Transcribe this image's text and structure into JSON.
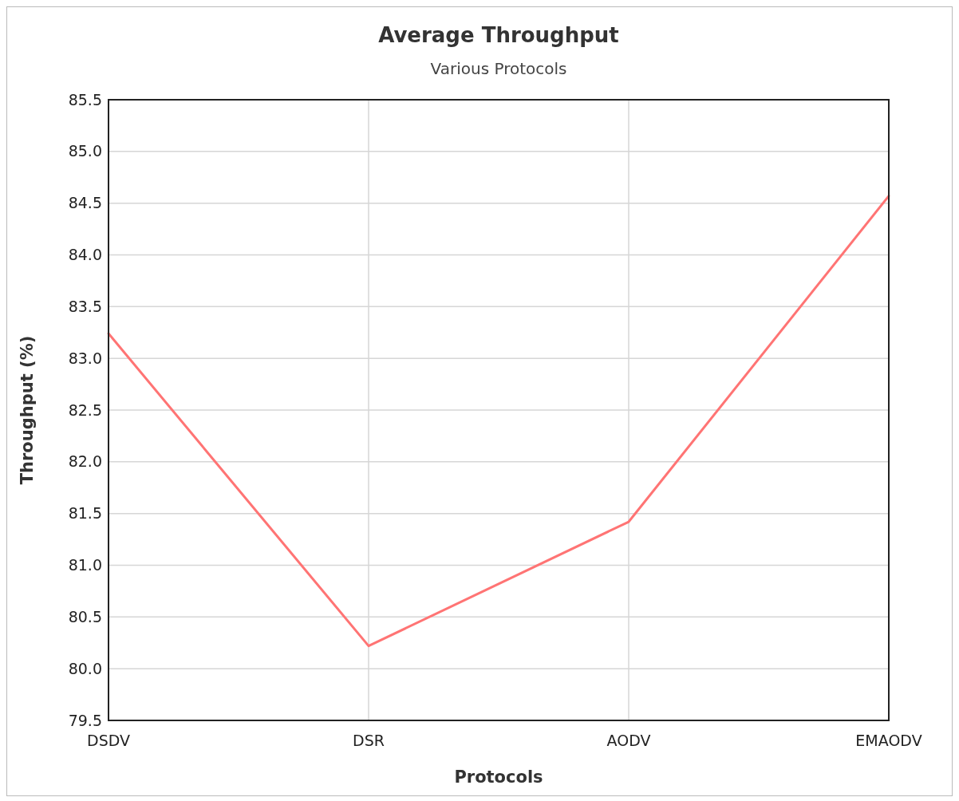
{
  "chart_data": {
    "type": "line",
    "title": "Average Throughput",
    "subtitle": "Various Protocols",
    "xlabel": "Protocols",
    "ylabel": "Throughput (%)",
    "categories": [
      "DSDV",
      "DSR",
      "AODV",
      "EMAODV"
    ],
    "series": [
      {
        "color": "#ff7474",
        "values": [
          83.24,
          80.22,
          81.42,
          84.57
        ]
      }
    ],
    "ylim": [
      79.5,
      85.5
    ],
    "yticks": [
      {
        "value": 79.5,
        "label": "79.5"
      },
      {
        "value": 80,
        "label": "80.0"
      },
      {
        "value": 80.5,
        "label": "80.5"
      },
      {
        "value": 81,
        "label": "81.0"
      },
      {
        "value": 81.5,
        "label": "81.5"
      },
      {
        "value": 82,
        "label": "82.0"
      },
      {
        "value": 82.5,
        "label": "82.5"
      },
      {
        "value": 83,
        "label": "83.0"
      },
      {
        "value": 83.5,
        "label": "83.5"
      },
      {
        "value": 84,
        "label": "84.0"
      },
      {
        "value": 84.5,
        "label": "84.5"
      },
      {
        "value": 85,
        "label": "85.0"
      },
      {
        "value": 85.5,
        "label": "85.5"
      }
    ],
    "grid": true,
    "marker": "none",
    "line_style": "solid"
  }
}
